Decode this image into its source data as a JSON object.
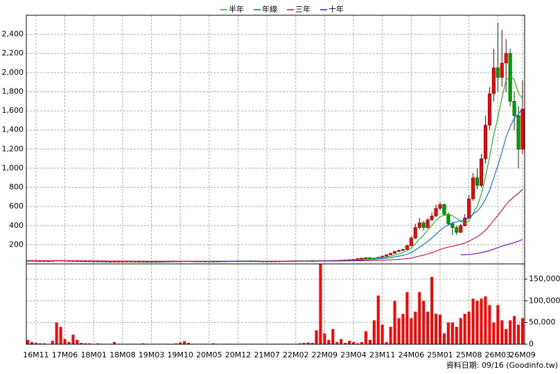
{
  "chart_data": {
    "type": "candlestick",
    "x": [
      "16M09",
      "16M10",
      "16M11",
      "16M12",
      "17M01",
      "17M02",
      "17M03",
      "17M04",
      "17M05",
      "17M06",
      "17M07",
      "17M08",
      "17M09",
      "17M10",
      "17M11",
      "17M12",
      "18M01",
      "18M02",
      "18M03",
      "18M04",
      "18M05",
      "18M06",
      "18M07",
      "18M08",
      "18M09",
      "18M10",
      "18M11",
      "18M12",
      "19M01",
      "19M02",
      "19M03",
      "19M04",
      "19M05",
      "19M06",
      "19M07",
      "19M08",
      "19M09",
      "19M10",
      "19M11",
      "19M12",
      "20M01",
      "20M02",
      "20M03",
      "20M04",
      "20M05",
      "20M06",
      "20M07",
      "20M08",
      "20M09",
      "20M10",
      "20M11",
      "20M12",
      "21M01",
      "21M02",
      "21M03",
      "21M04",
      "21M05",
      "21M06",
      "21M07",
      "21M08",
      "21M09",
      "21M10",
      "21M11",
      "21M12",
      "22M01",
      "22M02",
      "22M03",
      "22M04",
      "22M05",
      "22M06",
      "22M07",
      "22M08",
      "22M09",
      "22M10",
      "22M11",
      "22M12",
      "23M01",
      "23M02",
      "23M03",
      "23M04",
      "23M05",
      "23M06",
      "23M07",
      "23M08",
      "23M09",
      "23M10",
      "23M11",
      "23M12",
      "24M01",
      "24M02",
      "24M03",
      "24M04",
      "24M05",
      "24M06",
      "24M07",
      "24M08",
      "24M09",
      "24M10",
      "24M11",
      "24M12",
      "25M01",
      "25M02",
      "25M03",
      "25M04",
      "25M05",
      "25M06",
      "25M07",
      "25M08",
      "25M09",
      "25M10",
      "25M11",
      "25M12",
      "26M01",
      "26M02",
      "26M03",
      "26M04",
      "26M05",
      "26M06",
      "26M07",
      "26M08",
      "26M09"
    ],
    "open": [
      34,
      34,
      33,
      32,
      31,
      30,
      31,
      33,
      36,
      35,
      33,
      32,
      31,
      30,
      29,
      29,
      28,
      27,
      26,
      25,
      24,
      24,
      25,
      25,
      26,
      26,
      25,
      24,
      24,
      23,
      23,
      22,
      23,
      24,
      25,
      26,
      27,
      28,
      29,
      30,
      29,
      28,
      28,
      27,
      27,
      26,
      26,
      27,
      28,
      29,
      30,
      31,
      32,
      31,
      30,
      30,
      29,
      28,
      28,
      27,
      27,
      28,
      29,
      30,
      31,
      32,
      33,
      34,
      33,
      32,
      31,
      33,
      36,
      35,
      33,
      36,
      38,
      40,
      42,
      45,
      48,
      55,
      60,
      65,
      62,
      60,
      70,
      80,
      95,
      110,
      130,
      140,
      150,
      190,
      270,
      380,
      430,
      380,
      460,
      500,
      580,
      620,
      520,
      420,
      380,
      330,
      400,
      480,
      680,
      900,
      820,
      1100,
      1450,
      1780,
      2050,
      1950,
      2100,
      2200,
      1700,
      1550,
      1200
    ],
    "high": [
      35,
      35,
      34,
      33,
      32,
      32,
      34,
      37,
      37,
      36,
      34,
      33,
      32,
      31,
      30,
      30,
      29,
      28,
      27,
      26,
      25,
      26,
      26,
      27,
      27,
      27,
      26,
      25,
      25,
      24,
      24,
      24,
      25,
      26,
      27,
      28,
      29,
      30,
      31,
      31,
      30,
      29,
      29,
      28,
      28,
      27,
      28,
      29,
      30,
      31,
      32,
      33,
      33,
      32,
      31,
      31,
      30,
      29,
      29,
      28,
      29,
      30,
      31,
      32,
      33,
      34,
      35,
      35,
      34,
      33,
      34,
      38,
      40,
      37,
      38,
      40,
      42,
      44,
      47,
      50,
      57,
      63,
      68,
      68,
      64,
      73,
      84,
      98,
      115,
      135,
      150,
      160,
      200,
      290,
      420,
      480,
      450,
      480,
      540,
      620,
      650,
      630,
      540,
      440,
      400,
      420,
      520,
      720,
      950,
      1000,
      1150,
      1550,
      1850,
      2250,
      2520,
      2450,
      2350,
      2250,
      1800,
      1650,
      1920
    ],
    "low": [
      33,
      32,
      31,
      30,
      29,
      29,
      30,
      32,
      34,
      32,
      31,
      30,
      29,
      28,
      28,
      27,
      26,
      25,
      24,
      23,
      23,
      23,
      24,
      24,
      25,
      24,
      23,
      23,
      22,
      22,
      21,
      21,
      22,
      23,
      24,
      25,
      26,
      27,
      28,
      28,
      27,
      27,
      26,
      26,
      25,
      25,
      25,
      26,
      27,
      28,
      29,
      30,
      30,
      29,
      29,
      28,
      27,
      27,
      26,
      26,
      26,
      27,
      28,
      29,
      30,
      31,
      32,
      32,
      31,
      30,
      30,
      32,
      33,
      31,
      32,
      35,
      37,
      39,
      41,
      44,
      47,
      53,
      58,
      60,
      57,
      59,
      68,
      78,
      93,
      105,
      125,
      135,
      145,
      185,
      260,
      360,
      350,
      370,
      450,
      490,
      560,
      500,
      400,
      300,
      300,
      320,
      390,
      470,
      660,
      780,
      800,
      1050,
      1400,
      1700,
      1800,
      1850,
      1800,
      1650,
      1400,
      1000,
      1150
    ],
    "close": [
      34,
      33,
      32,
      31,
      30,
      31,
      33,
      36,
      35,
      33,
      32,
      31,
      30,
      29,
      29,
      28,
      27,
      26,
      25,
      24,
      24,
      25,
      25,
      26,
      26,
      25,
      24,
      24,
      23,
      23,
      22,
      23,
      24,
      25,
      26,
      27,
      28,
      29,
      30,
      29,
      28,
      28,
      27,
      27,
      26,
      26,
      27,
      28,
      29,
      30,
      31,
      32,
      31,
      30,
      30,
      29,
      28,
      28,
      27,
      27,
      28,
      29,
      30,
      31,
      32,
      33,
      34,
      33,
      32,
      31,
      33,
      36,
      35,
      33,
      36,
      38,
      40,
      42,
      45,
      48,
      55,
      60,
      65,
      62,
      60,
      70,
      80,
      95,
      110,
      130,
      140,
      150,
      190,
      270,
      380,
      430,
      380,
      460,
      500,
      580,
      620,
      520,
      420,
      380,
      330,
      400,
      480,
      680,
      900,
      820,
      1100,
      1450,
      1780,
      2050,
      1950,
      2100,
      2200,
      1700,
      1550,
      1200,
      1620
    ],
    "up_color": "#ff0000",
    "down_color": "#00a000",
    "series": [
      {
        "name": "半年",
        "color": "#00c000",
        "values": [
          34,
          34,
          33,
          33,
          32,
          32,
          32,
          32,
          33,
          33,
          33,
          33,
          33,
          32,
          31,
          30,
          29,
          28,
          27,
          26,
          26,
          25,
          25,
          25,
          25,
          25,
          25,
          25,
          24,
          24,
          24,
          23,
          23,
          23,
          24,
          24,
          25,
          26,
          27,
          28,
          29,
          29,
          29,
          28,
          28,
          27,
          27,
          27,
          27,
          28,
          28,
          29,
          30,
          30,
          31,
          31,
          30,
          29,
          29,
          28,
          28,
          28,
          28,
          29,
          30,
          31,
          32,
          33,
          33,
          33,
          33,
          33,
          33,
          33,
          34,
          35,
          36,
          37,
          39,
          42,
          45,
          48,
          53,
          56,
          58,
          62,
          66,
          72,
          80,
          91,
          104,
          118,
          136,
          165,
          210,
          260,
          300,
          352,
          403,
          455,
          495,
          510,
          517,
          503,
          475,
          445,
          422,
          448,
          528,
          602,
          730,
          905,
          1122,
          1350,
          1525,
          1738,
          1922,
          1963,
          1925,
          1783,
          1728
        ]
      },
      {
        "name": "年線",
        "color": "#0060ff",
        "values": [
          34,
          34,
          33,
          33,
          33,
          32,
          32,
          32,
          32,
          32,
          32,
          32,
          32,
          32,
          32,
          31,
          31,
          30,
          29,
          28,
          28,
          27,
          27,
          26,
          26,
          26,
          25,
          25,
          25,
          25,
          24,
          24,
          24,
          24,
          24,
          24,
          24,
          25,
          25,
          26,
          26,
          27,
          27,
          27,
          28,
          28,
          28,
          28,
          28,
          28,
          28,
          28,
          28,
          28,
          29,
          29,
          29,
          29,
          29,
          29,
          29,
          29,
          29,
          29,
          29,
          29,
          30,
          30,
          30,
          31,
          31,
          31,
          32,
          33,
          34,
          34,
          35,
          35,
          36,
          37,
          39,
          41,
          44,
          46,
          48,
          52,
          55,
          60,
          66,
          73,
          81,
          90,
          101,
          118,
          145,
          175,
          202,
          235,
          270,
          310,
          352,
          385,
          408,
          427,
          439,
          450,
          458,
          479,
          522,
          552,
          602,
          675,
          772,
          899,
          1026,
          1170,
          1326,
          1434,
          1523,
          1566,
          1626
        ]
      },
      {
        "name": "三年",
        "color": "#e00050",
        "values": [
          33,
          33,
          33,
          33,
          33,
          33,
          33,
          33,
          33,
          33,
          33,
          32,
          32,
          32,
          32,
          32,
          31,
          31,
          31,
          31,
          30,
          30,
          30,
          30,
          30,
          29,
          29,
          29,
          29,
          29,
          28,
          28,
          28,
          28,
          28,
          28,
          28,
          27,
          27,
          27,
          27,
          27,
          27,
          27,
          27,
          27,
          26,
          26,
          26,
          26,
          26,
          26,
          27,
          27,
          27,
          27,
          27,
          27,
          27,
          28,
          28,
          28,
          28,
          28,
          28,
          28,
          28,
          29,
          29,
          29,
          29,
          29,
          29,
          30,
          30,
          30,
          31,
          31,
          31,
          32,
          32,
          33,
          34,
          35,
          36,
          37,
          38,
          40,
          42,
          45,
          48,
          51,
          55,
          62,
          71,
          82,
          92,
          104,
          117,
          133,
          150,
          164,
          175,
          185,
          194,
          205,
          218,
          236,
          261,
          283,
          313,
          352,
          400,
          455,
          506,
          562,
          621,
          665,
          705,
          737,
          780
        ]
      },
      {
        "name": "十年",
        "color": "#6a00c8",
        "values": [
          null,
          null,
          null,
          null,
          null,
          null,
          null,
          null,
          null,
          null,
          null,
          null,
          null,
          null,
          null,
          null,
          null,
          null,
          null,
          null,
          null,
          null,
          null,
          null,
          null,
          null,
          null,
          null,
          null,
          null,
          null,
          null,
          null,
          null,
          null,
          null,
          null,
          null,
          null,
          null,
          null,
          null,
          null,
          null,
          null,
          null,
          null,
          null,
          null,
          null,
          null,
          null,
          null,
          null,
          null,
          null,
          null,
          null,
          null,
          null,
          null,
          null,
          null,
          null,
          null,
          null,
          null,
          null,
          null,
          null,
          null,
          null,
          null,
          null,
          null,
          null,
          null,
          null,
          null,
          null,
          null,
          null,
          null,
          null,
          null,
          null,
          null,
          null,
          null,
          null,
          null,
          null,
          null,
          null,
          null,
          null,
          null,
          null,
          null,
          null,
          null,
          null,
          null,
          null,
          null,
          95,
          96,
          98,
          103,
          110,
          118,
          128,
          140,
          155,
          170,
          185,
          198,
          210,
          222,
          238,
          255
        ]
      }
    ],
    "volume": [
      10000,
      5000,
      3000,
      2000,
      2000,
      1000,
      8000,
      50000,
      40000,
      12000,
      5000,
      22000,
      10000,
      3000,
      2000,
      2000,
      1000,
      2000,
      1000,
      1000,
      1000,
      5000,
      1000,
      1000,
      1000,
      1000,
      1000,
      1000,
      2000,
      1000,
      1000,
      1000,
      1000,
      1000,
      1000,
      1000,
      2000,
      4000,
      7000,
      3000,
      1000,
      1000,
      1000,
      1000,
      1000,
      2000,
      1000,
      1000,
      1000,
      1000,
      1000,
      1000,
      1000,
      1000,
      1000,
      1000,
      1000,
      1000,
      1000,
      1000,
      1000,
      1000,
      1000,
      1000,
      1000,
      1000,
      2000,
      3000,
      4000,
      3000,
      32000,
      185000,
      25000,
      10000,
      35000,
      5000,
      12000,
      3000,
      8000,
      5000,
      2000,
      5000,
      30000,
      10000,
      55000,
      112000,
      45000,
      5000,
      40000,
      100000,
      60000,
      70000,
      120000,
      60000,
      75000,
      120000,
      100000,
      75000,
      155000,
      70000,
      68000,
      25000,
      50000,
      50000,
      40000,
      60000,
      70000,
      75000,
      105000,
      100000,
      105000,
      110000,
      90000,
      50000,
      90000,
      55000,
      35000,
      55000,
      65000,
      45000,
      60000
    ],
    "volume_color": "#ff0000",
    "ylim": [
      0,
      2600
    ],
    "yticks": [
      200,
      400,
      600,
      800,
      {
        "value": 1000,
        "label": "1,000"
      },
      {
        "value": 1200,
        "label": "1,200"
      },
      {
        "value": 1400,
        "label": "1,400"
      },
      {
        "value": 1600,
        "label": "1,600"
      },
      {
        "value": 1800,
        "label": "1,800"
      },
      {
        "value": 2000,
        "label": "2,000"
      },
      {
        "value": 2200,
        "label": "2,200"
      },
      {
        "value": 2400,
        "label": "2,400"
      }
    ],
    "y2lim": [
      0,
      185000
    ],
    "y2ticks": [
      0,
      {
        "value": 50000,
        "label": "50,000"
      },
      {
        "value": 100000,
        "label": "100,000"
      },
      {
        "value": 150000,
        "label": "150,000"
      }
    ],
    "xticks": [
      "16M11",
      "17M06",
      "18M01",
      "18M08",
      "19M03",
      "19M10",
      "20M05",
      "20M12",
      "21M07",
      "22M02",
      "22M09",
      "23M04",
      "23M11",
      "24M06",
      "25M01",
      "25M08",
      "26M03",
      "26M09"
    ],
    "grid": true,
    "footer": "資料日期: 09/16  (Goodinfo.tw)"
  }
}
